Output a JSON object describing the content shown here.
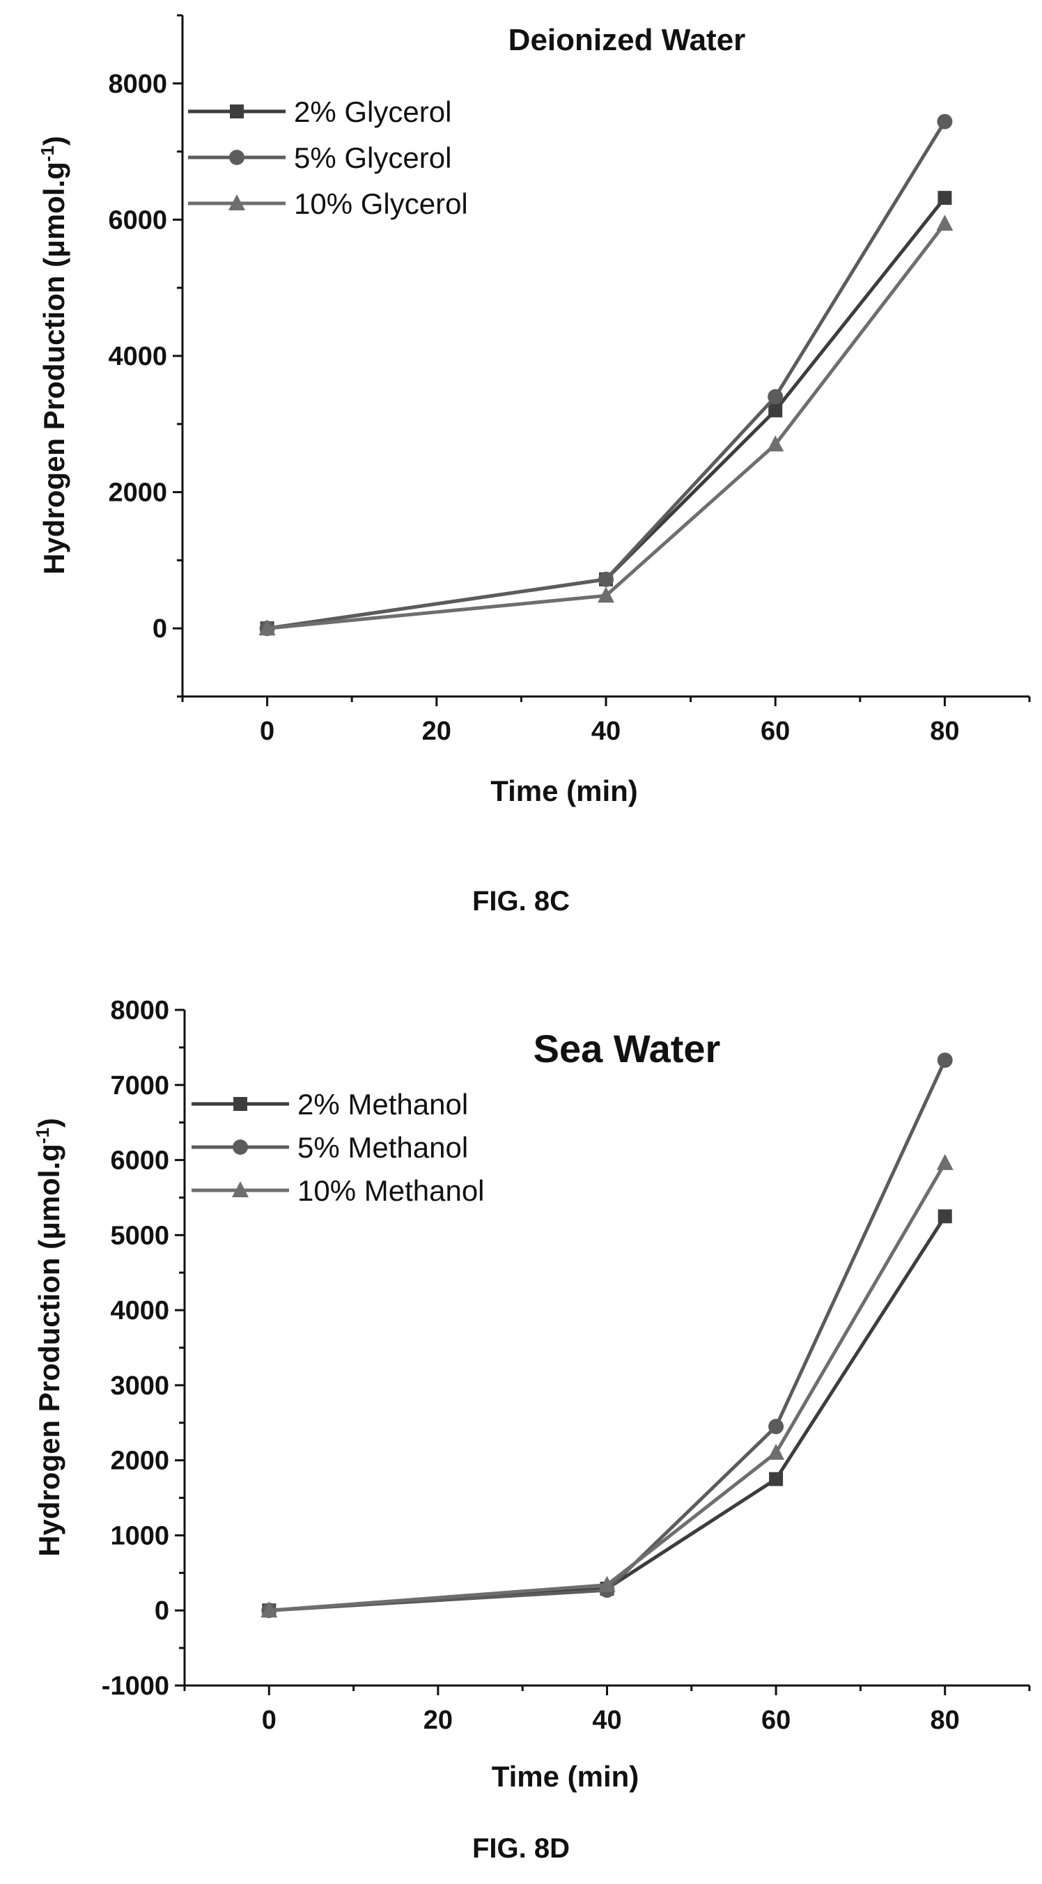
{
  "figures": [
    {
      "caption": "FIG. 8C",
      "chart_data": {
        "type": "line",
        "title": "Deionized Water",
        "xlabel": "Time (min)",
        "ylabel_main": "Hydrogen Production (",
        "ylabel_mu": "μ",
        "ylabel_unit": "mol.g",
        "ylabel_sup": "-1",
        "ylabel_close": ")",
        "xlim": [
          -10,
          90
        ],
        "ylim": [
          -1000,
          9000
        ],
        "x_ticks": [
          0,
          20,
          40,
          60,
          80
        ],
        "x_tick_labels": [
          "0",
          "20",
          "40",
          "60",
          "80"
        ],
        "y_ticks": [
          0,
          2000,
          4000,
          6000,
          8000
        ],
        "y_tick_labels": [
          "0",
          "2000",
          "4000",
          "6000",
          "8000"
        ],
        "x": [
          0,
          40,
          60,
          80
        ],
        "legend_position": "top-left",
        "series": [
          {
            "name": "2% Glycerol",
            "marker": "square",
            "values": [
              0,
              720,
              3200,
              6320
            ]
          },
          {
            "name": "5% Glycerol",
            "marker": "circle",
            "values": [
              0,
              720,
              3400,
              7440
            ]
          },
          {
            "name": "10% Glycerol",
            "marker": "triangle",
            "values": [
              0,
              480,
              2700,
              5940
            ]
          }
        ]
      }
    },
    {
      "caption": "FIG. 8D",
      "chart_data": {
        "type": "line",
        "title": "Sea Water",
        "xlabel": "Time (min)",
        "ylabel_main": "Hydrogen Production (",
        "ylabel_mu": "μ",
        "ylabel_unit": "mol.g",
        "ylabel_sup": "-1",
        "ylabel_close": ")",
        "xlim": [
          -10,
          90
        ],
        "ylim": [
          -1000,
          8000
        ],
        "x_ticks": [
          0,
          20,
          40,
          60,
          80
        ],
        "x_tick_labels": [
          "0",
          "20",
          "40",
          "60",
          "80"
        ],
        "y_ticks": [
          -1000,
          0,
          1000,
          2000,
          3000,
          4000,
          5000,
          6000,
          7000,
          8000
        ],
        "y_tick_labels": [
          "-1000",
          "0",
          "1000",
          "2000",
          "3000",
          "4000",
          "5000",
          "6000",
          "7000",
          "8000"
        ],
        "x": [
          0,
          40,
          60,
          80
        ],
        "legend_position": "top-left",
        "series": [
          {
            "name": "2% Methanol",
            "marker": "square",
            "values": [
              0,
              290,
              1750,
              5250
            ]
          },
          {
            "name": "5% Methanol",
            "marker": "circle",
            "values": [
              0,
              270,
              2450,
              7330
            ]
          },
          {
            "name": "10% Methanol",
            "marker": "triangle",
            "values": [
              0,
              340,
              2100,
              5960
            ]
          }
        ]
      }
    }
  ],
  "colors": {
    "series": [
      "#3d3d3d",
      "#5c5c5c",
      "#6e6e6e"
    ],
    "axis": "#111111"
  }
}
